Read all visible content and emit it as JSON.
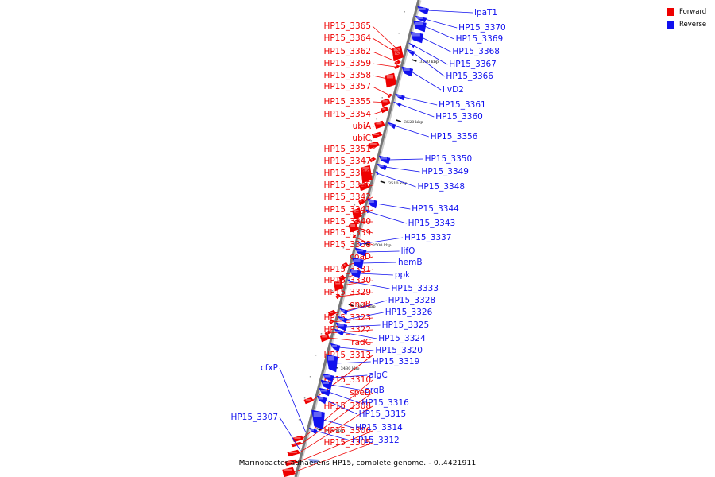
{
  "caption": "Marinobacter adhaerens HP15, complete genome. - 0..4421911",
  "colors": {
    "forward": "#ee0000",
    "reverse": "#1111ee",
    "axis": "#777777"
  },
  "legend": [
    {
      "label": "Forward",
      "color": "#ee0000"
    },
    {
      "label": "Reverse",
      "color": "#1111ee"
    }
  ],
  "kbp_ticks": [
    "3530 kbp",
    "3520 kbp",
    "3510 kbp",
    "3500 kbp",
    "3490 kbp",
    "3480 kbp",
    "3470 kbp"
  ],
  "forward_genes": [
    "HP15_3365",
    "HP15_3364",
    "HP15_3362",
    "HP15_3359",
    "HP15_3358",
    "HP15_3357",
    "HP15_3355",
    "HP15_3354",
    "ubiA",
    "ubiC",
    "HP15_3351",
    "HP15_3347",
    "HP15_3346",
    "HP15_3345",
    "HP15_3342",
    "HP15_3341",
    "HP15_3340",
    "HP15_3339",
    "HP15_3338",
    "coaD",
    "HP15_3331",
    "HP15_3330",
    "HP15_3329",
    "engB",
    "HP15_3323",
    "HP15_3322",
    "radC",
    "HP15_3313",
    "HP15_3310",
    "speD",
    "HP15_3308",
    "HP15_3306",
    "HP15_3305"
  ],
  "left_reverse_genes": [
    "cfxP",
    "HP15_3307"
  ],
  "reverse_genes": [
    "lpaT1",
    "HP15_3370",
    "HP15_3369",
    "HP15_3368",
    "HP15_3367",
    "HP15_3366",
    "ilvD2",
    "HP15_3361",
    "HP15_3360",
    "HP15_3356",
    "HP15_3350",
    "HP15_3349",
    "HP15_3348",
    "HP15_3344",
    "HP15_3343",
    "HP15_3337",
    "lifO",
    "hemB",
    "ppk",
    "HP15_3333",
    "HP15_3328",
    "HP15_3326",
    "HP15_3325",
    "HP15_3324",
    "HP15_3320",
    "HP15_3319",
    "algC",
    "argB",
    "HP15_3316",
    "HP15_3315",
    "HP15_3314",
    "HP15_3312"
  ]
}
